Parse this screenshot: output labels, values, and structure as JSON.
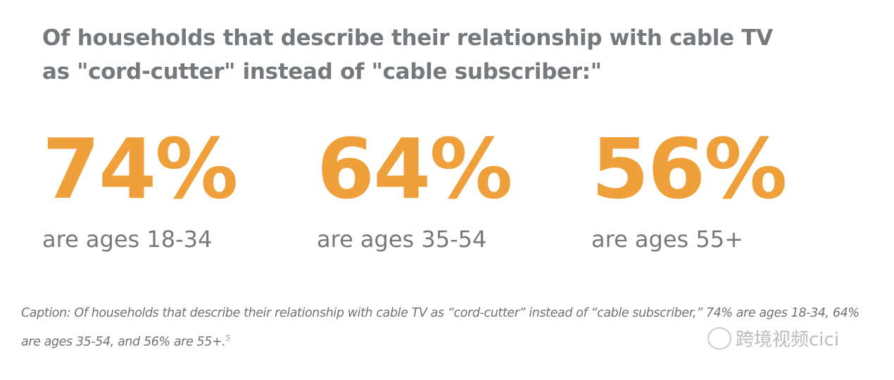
{
  "title": {
    "line1": "Of households that describe their relationship with cable TV",
    "line2": "as \"cord-cutter\" instead of \"cable subscriber:\""
  },
  "stats": [
    {
      "value": "74%",
      "label": "are ages 18-34"
    },
    {
      "value": "64%",
      "label": "are ages 35-54"
    },
    {
      "value": "56%",
      "label": "are ages 55+"
    }
  ],
  "caption": {
    "text": "Caption: Of households that describe their relationship with cable TV as “cord-cutter” instead of “cable subscriber,” 74% are ages 18-34, 64% are ages 35-54, and 56% are 55+.",
    "footnote": "5"
  },
  "watermark": "跨境视频cici",
  "colors": {
    "accent": "#f0a03a",
    "text": "#76797c"
  }
}
